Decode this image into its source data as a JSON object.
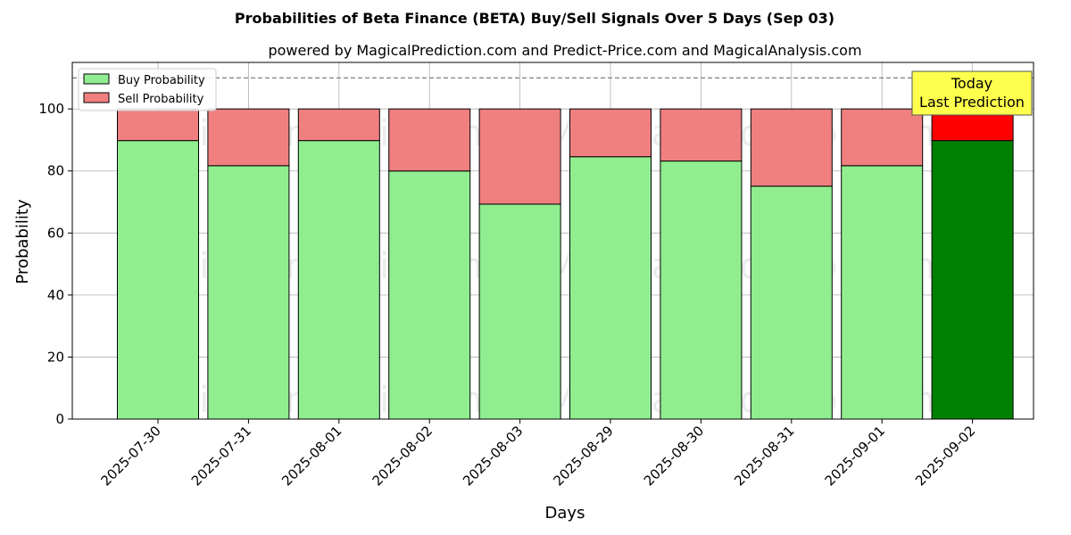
{
  "chart_data": {
    "type": "bar",
    "stacked": true,
    "title": "Probabilities of Beta Finance (BETA) Buy/Sell Signals Over 5 Days (Sep 03)",
    "subtitle": "powered by MagicalPrediction.com and Predict-Price.com and MagicalAnalysis.com",
    "xlabel": "Days",
    "ylabel": "Probability",
    "ylim": [
      0,
      115
    ],
    "yticks": [
      0,
      20,
      40,
      60,
      80,
      100
    ],
    "grid": true,
    "reference_line": 110,
    "legend_position": "top-left",
    "categories": [
      "2025-07-30",
      "2025-07-31",
      "2025-08-01",
      "2025-08-02",
      "2025-08-03",
      "2025-08-29",
      "2025-08-30",
      "2025-08-31",
      "2025-09-01",
      "2025-09-02"
    ],
    "series": [
      {
        "name": "Buy Probability",
        "values": [
          89.8,
          81.7,
          89.8,
          80.0,
          69.3,
          84.6,
          83.2,
          75.1,
          81.7,
          89.8
        ],
        "color": "#90ee90",
        "highlight_color": "#008000"
      },
      {
        "name": "Sell Probability",
        "values": [
          10.2,
          18.3,
          10.2,
          20.0,
          30.7,
          15.4,
          16.8,
          24.9,
          18.3,
          10.2
        ],
        "color": "#f08080",
        "highlight_color": "#ff0000"
      }
    ],
    "highlight_index": 9,
    "annotation": {
      "line1": "Today",
      "line2": "Last Prediction",
      "color": "#ffff4d"
    },
    "watermarks": [
      "MagicalAnalysis.com",
      "MagicalPrediction.com"
    ]
  }
}
